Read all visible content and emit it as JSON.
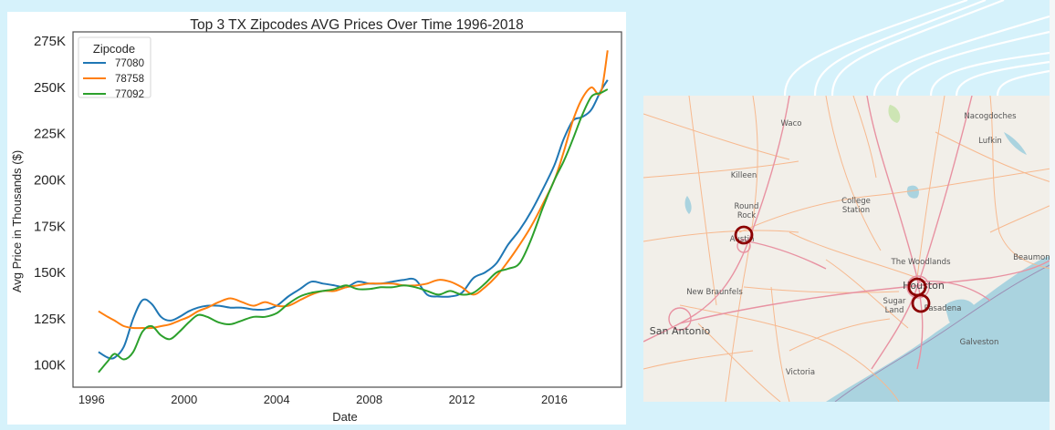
{
  "chart_data": {
    "type": "line",
    "title": "Top 3 TX Zipcodes AVG Prices Over Time 1996-2018",
    "xlabel": "Date",
    "ylabel": "Avg Price in Thousands ($)",
    "xlim": [
      1995.2,
      2018.9
    ],
    "ylim": [
      88,
      280
    ],
    "x_ticks": [
      1996,
      2000,
      2004,
      2008,
      2012,
      2016
    ],
    "x_tick_labels": [
      "1996",
      "2000",
      "2004",
      "2008",
      "2012",
      "2016"
    ],
    "y_ticks": [
      100,
      125,
      150,
      175,
      200,
      225,
      250,
      275
    ],
    "y_tick_labels": [
      "100K",
      "125K",
      "150K",
      "175K",
      "200K",
      "225K",
      "250K",
      "275K"
    ],
    "grid": false,
    "legend": {
      "title": "Zipcode",
      "placement": "top-left"
    },
    "x": [
      1996.3,
      1996.7,
      1997.0,
      1997.4,
      1997.8,
      1998.2,
      1998.6,
      1999.0,
      1999.4,
      1999.8,
      2000.2,
      2000.6,
      2001.0,
      2001.5,
      2002.0,
      2002.5,
      2003.0,
      2003.5,
      2004.0,
      2004.5,
      2005.0,
      2005.5,
      2006.0,
      2006.5,
      2007.0,
      2007.5,
      2008.0,
      2008.5,
      2009.0,
      2009.5,
      2010.0,
      2010.5,
      2011.0,
      2011.5,
      2012.0,
      2012.5,
      2013.0,
      2013.5,
      2014.0,
      2014.5,
      2015.0,
      2015.5,
      2016.0,
      2016.4,
      2016.8,
      2017.2,
      2017.6,
      2018.0,
      2018.3
    ],
    "series": [
      {
        "name": "77080",
        "color": "#1f77b4",
        "values": [
          107,
          104,
          104,
          110,
          125,
          135,
          133,
          126,
          124,
          126,
          129,
          131,
          132,
          132,
          131,
          131,
          130,
          130,
          132,
          137,
          141,
          145,
          144,
          143,
          142,
          145,
          144,
          144,
          145,
          146,
          146,
          138,
          137,
          137,
          139,
          147,
          150,
          155,
          165,
          173,
          183,
          195,
          208,
          222,
          232,
          234,
          238,
          248,
          254
        ]
      },
      {
        "name": "78758",
        "color": "#ff7f0e",
        "values": [
          129,
          126,
          124,
          121,
          120,
          120,
          120,
          121,
          122,
          124,
          126,
          129,
          131,
          134,
          136,
          134,
          132,
          134,
          132,
          132,
          135,
          138,
          140,
          140,
          142,
          143,
          144,
          144,
          144,
          143,
          143,
          144,
          146,
          145,
          142,
          138,
          142,
          148,
          156,
          165,
          175,
          187,
          200,
          215,
          232,
          244,
          250,
          247,
          270
        ]
      },
      {
        "name": "77092",
        "color": "#2ca02c",
        "values": [
          96,
          102,
          106,
          103,
          107,
          118,
          121,
          116,
          114,
          118,
          123,
          127,
          126,
          123,
          122,
          124,
          126,
          126,
          128,
          133,
          137,
          139,
          140,
          141,
          143,
          141,
          141,
          142,
          142,
          143,
          142,
          140,
          138,
          140,
          138,
          139,
          144,
          150,
          152,
          155,
          168,
          185,
          200,
          210,
          222,
          235,
          245,
          247,
          249
        ]
      }
    ]
  },
  "map": {
    "cities": [
      "Waco",
      "Nacogdoches",
      "Lufkin",
      "Killeen",
      "Round Rock",
      "College Station",
      "Austin",
      "The Woodlands",
      "Beaumont",
      "Houston",
      "New Braunfels",
      "Sugar Land",
      "Pasadena",
      "San Antonio",
      "Galveston",
      "Victoria"
    ],
    "marker_color": "#8b0000",
    "markers": [
      "Austin (78758)",
      "Houston (77080)",
      "Houston (77092)"
    ]
  }
}
